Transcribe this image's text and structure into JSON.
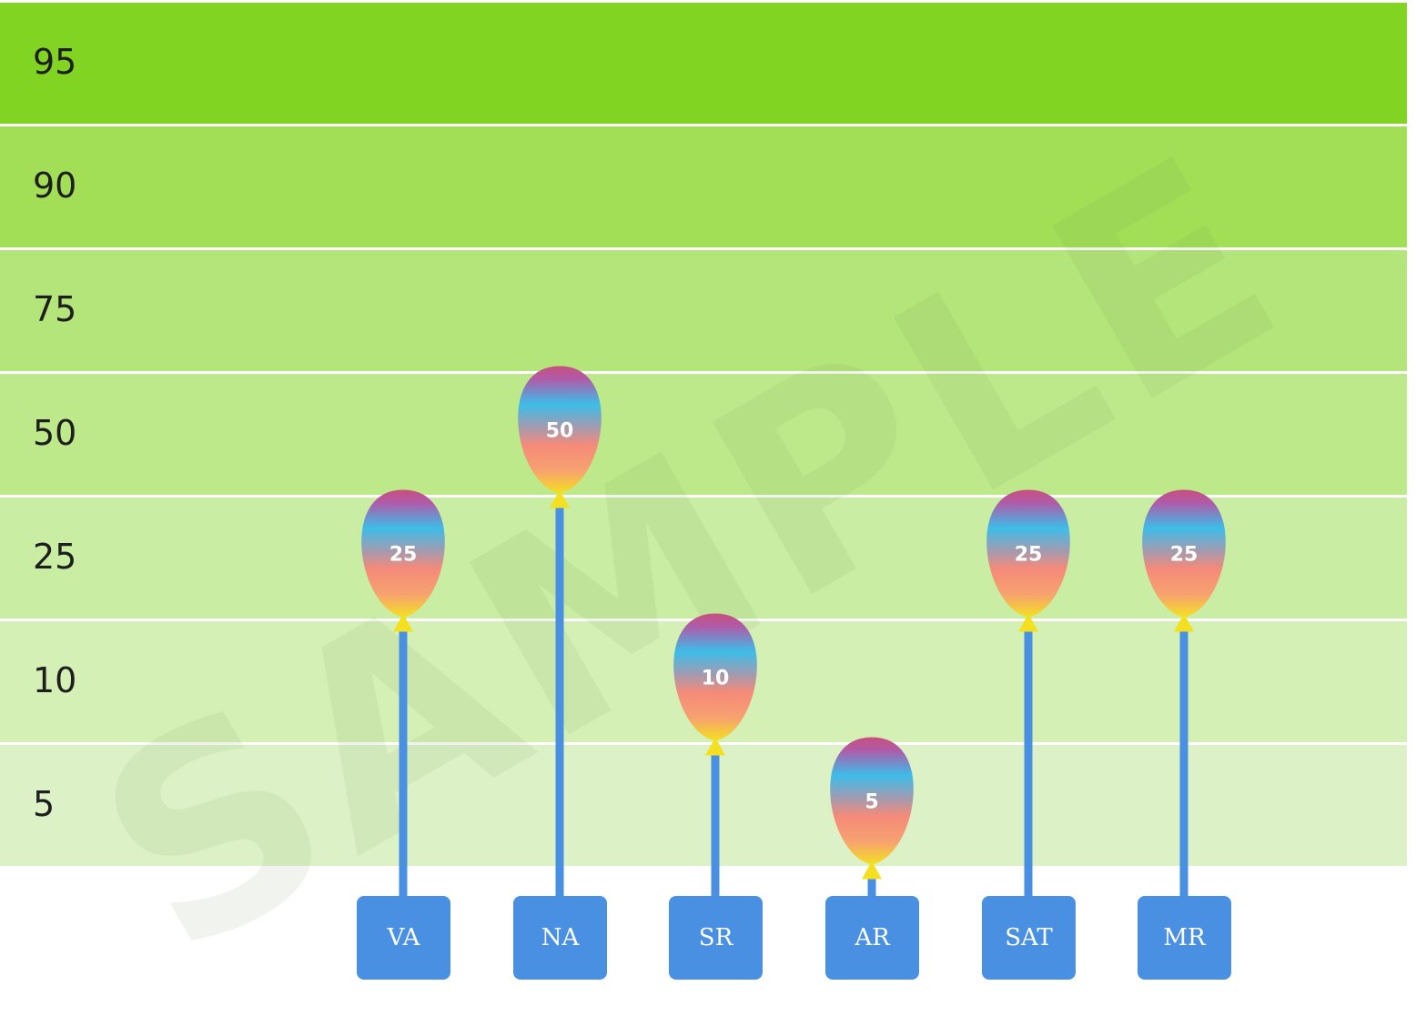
{
  "chart_data": {
    "type": "bar",
    "style": "balloon",
    "title": "",
    "xlabel": "",
    "ylabel": "",
    "y_ticks": [
      "95",
      "90",
      "75",
      "50",
      "25",
      "10",
      "5"
    ],
    "categories": [
      "VA",
      "NA",
      "SR",
      "AR",
      "SAT",
      "MR"
    ],
    "values": [
      25,
      50,
      10,
      5,
      25,
      25
    ],
    "watermark": "SAMPLE",
    "colors": {
      "band_top": "#82d422",
      "band_bottom": "#dcf2c6",
      "stick": "#4a90e2",
      "label_box": "#4a90e2",
      "balloon_gradient": [
        "#c7517e",
        "#3dbde9",
        "#f58a7a",
        "#f4e020"
      ]
    }
  }
}
